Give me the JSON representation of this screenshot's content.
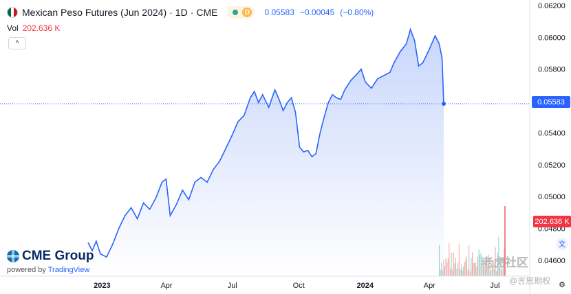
{
  "header": {
    "title": "Mexican Peso Futures (Jun 2024)",
    "interval": "1D",
    "exchange": "CME",
    "sep": "·",
    "last": "0.05583",
    "change": "−0.00045",
    "change_pct": "(−0.80%)",
    "delay_badge": "D",
    "vol_label": "Vol",
    "vol_value": "202.636 K",
    "collapse_glyph": "^"
  },
  "branding": {
    "brand": "CME Group",
    "powered": "powered by",
    "powered_brand": "TradingView",
    "watermark": "老虎社区",
    "watermark_sub": "@言思期权"
  },
  "colors": {
    "line": "#2962ff",
    "area_top": "#c8d6fb",
    "area_bottom": "#ffffff",
    "vol_up": "#26a69a",
    "vol_down": "#ef5350",
    "price_badge": "#2962ff",
    "vol_badge": "#f23645"
  },
  "chart_data": {
    "type": "area",
    "ylim": [
      0.045,
      0.062
    ],
    "yticks": [
      "0.06200",
      "0.06000",
      "0.05800",
      "0.05600",
      "0.05400",
      "0.05200",
      "0.05000",
      "0.04800",
      "0.04600"
    ],
    "xticks": [
      {
        "label": "2023",
        "bold": true,
        "t": 0.095
      },
      {
        "label": "Apr",
        "bold": false,
        "t": 0.225
      },
      {
        "label": "Jul",
        "bold": false,
        "t": 0.358
      },
      {
        "label": "Oct",
        "bold": false,
        "t": 0.492
      },
      {
        "label": "2024",
        "bold": true,
        "t": 0.626
      },
      {
        "label": "Apr",
        "bold": false,
        "t": 0.756
      },
      {
        "label": "Jul",
        "bold": false,
        "t": 0.888
      }
    ],
    "last_value": 0.05583,
    "last_label": "0.05583",
    "volume_label": "202.636 K",
    "series": [
      {
        "values": [
          [
            0.0,
            0.0471
          ],
          [
            0.01,
            0.0466
          ],
          [
            0.02,
            0.0472
          ],
          [
            0.03,
            0.0464
          ],
          [
            0.045,
            0.0462
          ],
          [
            0.06,
            0.047
          ],
          [
            0.075,
            0.048
          ],
          [
            0.09,
            0.0488
          ],
          [
            0.105,
            0.0493
          ],
          [
            0.12,
            0.0486
          ],
          [
            0.135,
            0.0496
          ],
          [
            0.15,
            0.0492
          ],
          [
            0.165,
            0.0499
          ],
          [
            0.18,
            0.0509
          ],
          [
            0.19,
            0.0511
          ],
          [
            0.2,
            0.0488
          ],
          [
            0.215,
            0.0495
          ],
          [
            0.23,
            0.0504
          ],
          [
            0.245,
            0.0498
          ],
          [
            0.26,
            0.0509
          ],
          [
            0.275,
            0.0512
          ],
          [
            0.29,
            0.0509
          ],
          [
            0.305,
            0.0517
          ],
          [
            0.32,
            0.0522
          ],
          [
            0.335,
            0.053
          ],
          [
            0.35,
            0.0538
          ],
          [
            0.365,
            0.0547
          ],
          [
            0.38,
            0.0551
          ],
          [
            0.395,
            0.0562
          ],
          [
            0.405,
            0.0566
          ],
          [
            0.415,
            0.0559
          ],
          [
            0.425,
            0.0564
          ],
          [
            0.44,
            0.0556
          ],
          [
            0.455,
            0.0567
          ],
          [
            0.465,
            0.0561
          ],
          [
            0.475,
            0.0554
          ],
          [
            0.485,
            0.0559
          ],
          [
            0.495,
            0.0562
          ],
          [
            0.505,
            0.0553
          ],
          [
            0.515,
            0.0531
          ],
          [
            0.525,
            0.0528
          ],
          [
            0.535,
            0.0529
          ],
          [
            0.545,
            0.0525
          ],
          [
            0.555,
            0.0527
          ],
          [
            0.565,
            0.054
          ],
          [
            0.575,
            0.055
          ],
          [
            0.585,
            0.0559
          ],
          [
            0.595,
            0.0564
          ],
          [
            0.605,
            0.0562
          ],
          [
            0.615,
            0.0561
          ],
          [
            0.625,
            0.0567
          ],
          [
            0.64,
            0.0573
          ],
          [
            0.655,
            0.0577
          ],
          [
            0.665,
            0.058
          ],
          [
            0.675,
            0.0572
          ],
          [
            0.69,
            0.0568
          ],
          [
            0.705,
            0.0574
          ],
          [
            0.72,
            0.0576
          ],
          [
            0.735,
            0.0578
          ],
          [
            0.745,
            0.0584
          ],
          [
            0.76,
            0.0591
          ],
          [
            0.775,
            0.0596
          ],
          [
            0.785,
            0.0605
          ],
          [
            0.795,
            0.0598
          ],
          [
            0.805,
            0.0582
          ],
          [
            0.815,
            0.0584
          ],
          [
            0.83,
            0.0592
          ],
          [
            0.845,
            0.0601
          ],
          [
            0.855,
            0.0596
          ],
          [
            0.862,
            0.0587
          ],
          [
            0.866,
            0.05583
          ]
        ]
      }
    ]
  }
}
